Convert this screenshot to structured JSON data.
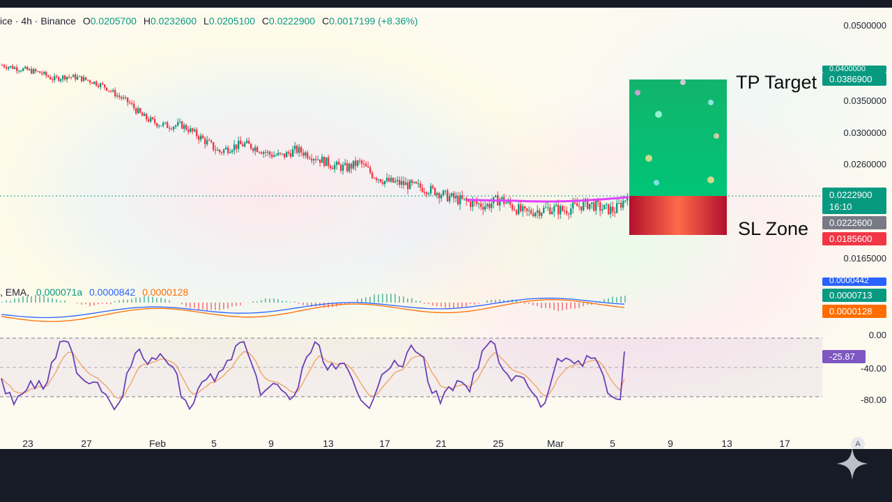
{
  "legend": {
    "symbol_suffix": "ice · 4h · Binance",
    "o_label": "O",
    "o_value": "0.0205700",
    "h_label": "H",
    "h_value": "0.0232600",
    "l_label": "L",
    "l_value": "0.0205100",
    "c_label": "C",
    "c_value": "0.0222900",
    "change_label": "C",
    "change_value": "0.0017199 (+8.36%)"
  },
  "macd_legend": {
    "prefix": ", EMA,",
    "v1": "0.000071a",
    "v2": "0.0000842",
    "v3": "0.0000128"
  },
  "price_axis": [
    "0.0500000",
    "0.0350000",
    "0.0300000",
    "0.0260000",
    "0.0165000"
  ],
  "price_tags": {
    "tp_hidden": "0.0400000",
    "tp": "0.0386900",
    "current_price": "0.0222900",
    "countdown": "16:10",
    "gray": "0.0222600",
    "sl": "0.0185600"
  },
  "macd_tags": {
    "top": "0.0000442",
    "green": "0.0000713",
    "orange": "0.0000128"
  },
  "osc_axis": [
    "0.00",
    "-40.00",
    "-80.00"
  ],
  "osc_tag": "-25.87",
  "labels": {
    "tp": "TP Target",
    "sl": "SL Zone"
  },
  "dates": [
    "23",
    "27",
    "Feb",
    "5",
    "9",
    "13",
    "17",
    "21",
    "25",
    "Mar",
    "5",
    "9",
    "13",
    "17"
  ],
  "auto_button": "A",
  "colors": {
    "up": "#089981",
    "down": "#f23645",
    "tp_box": "#00c074",
    "sl_box": "#b2102c",
    "tag_green": "#089981",
    "tag_red": "#f23645",
    "tag_gray": "#787b86",
    "tag_blue": "#2962ff",
    "tag_orange": "#ff6d00",
    "tag_purple": "#7e57c2",
    "osc_line": "#7e57c2",
    "osc_signal": "#f0a060",
    "highlight": "#e040fb"
  },
  "chart_data": {
    "type": "candlestick",
    "price_path": [
      0.042,
      0.0415,
      0.041,
      0.0405,
      0.0392,
      0.0398,
      0.0395,
      0.0388,
      0.0378,
      0.036,
      0.0345,
      0.0325,
      0.0315,
      0.031,
      0.0312,
      0.03,
      0.0288,
      0.0275,
      0.0282,
      0.0285,
      0.028,
      0.0272,
      0.027,
      0.0278,
      0.0272,
      0.0265,
      0.0258,
      0.0255,
      0.0262,
      0.0248,
      0.024,
      0.0238,
      0.0235,
      0.0232,
      0.0228,
      0.0222,
      0.0218,
      0.0215,
      0.0213,
      0.022,
      0.0212,
      0.0205,
      0.0208,
      0.021,
      0.0208,
      0.0212,
      0.0215,
      0.021,
      0.0208,
      0.0222
    ],
    "last_close": 0.02229
  }
}
